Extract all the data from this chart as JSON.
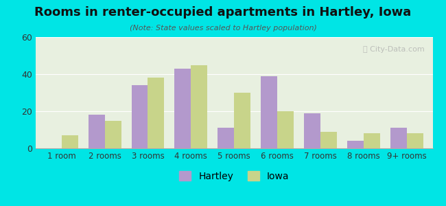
{
  "title": "Rooms in renter-occupied apartments in Hartley, Iowa",
  "subtitle": "(Note: State values scaled to Hartley population)",
  "categories": [
    "1 room",
    "2 rooms",
    "3 rooms",
    "4 rooms",
    "5 rooms",
    "6 rooms",
    "7 rooms",
    "8 rooms",
    "9+ rooms"
  ],
  "hartley": [
    0,
    18,
    34,
    43,
    11,
    39,
    19,
    4,
    11
  ],
  "iowa": [
    7,
    15,
    38,
    45,
    30,
    20,
    9,
    8,
    8
  ],
  "hartley_color": "#b399cc",
  "iowa_color": "#c8d48a",
  "background_outer": "#00e5e5",
  "background_inner_top": "#e8f0e0",
  "background_inner_bottom": "#d8ead0",
  "ylim": [
    0,
    60
  ],
  "yticks": [
    0,
    20,
    40,
    60
  ],
  "bar_width": 0.38,
  "figsize": [
    6.5,
    3.0
  ],
  "dpi": 100
}
